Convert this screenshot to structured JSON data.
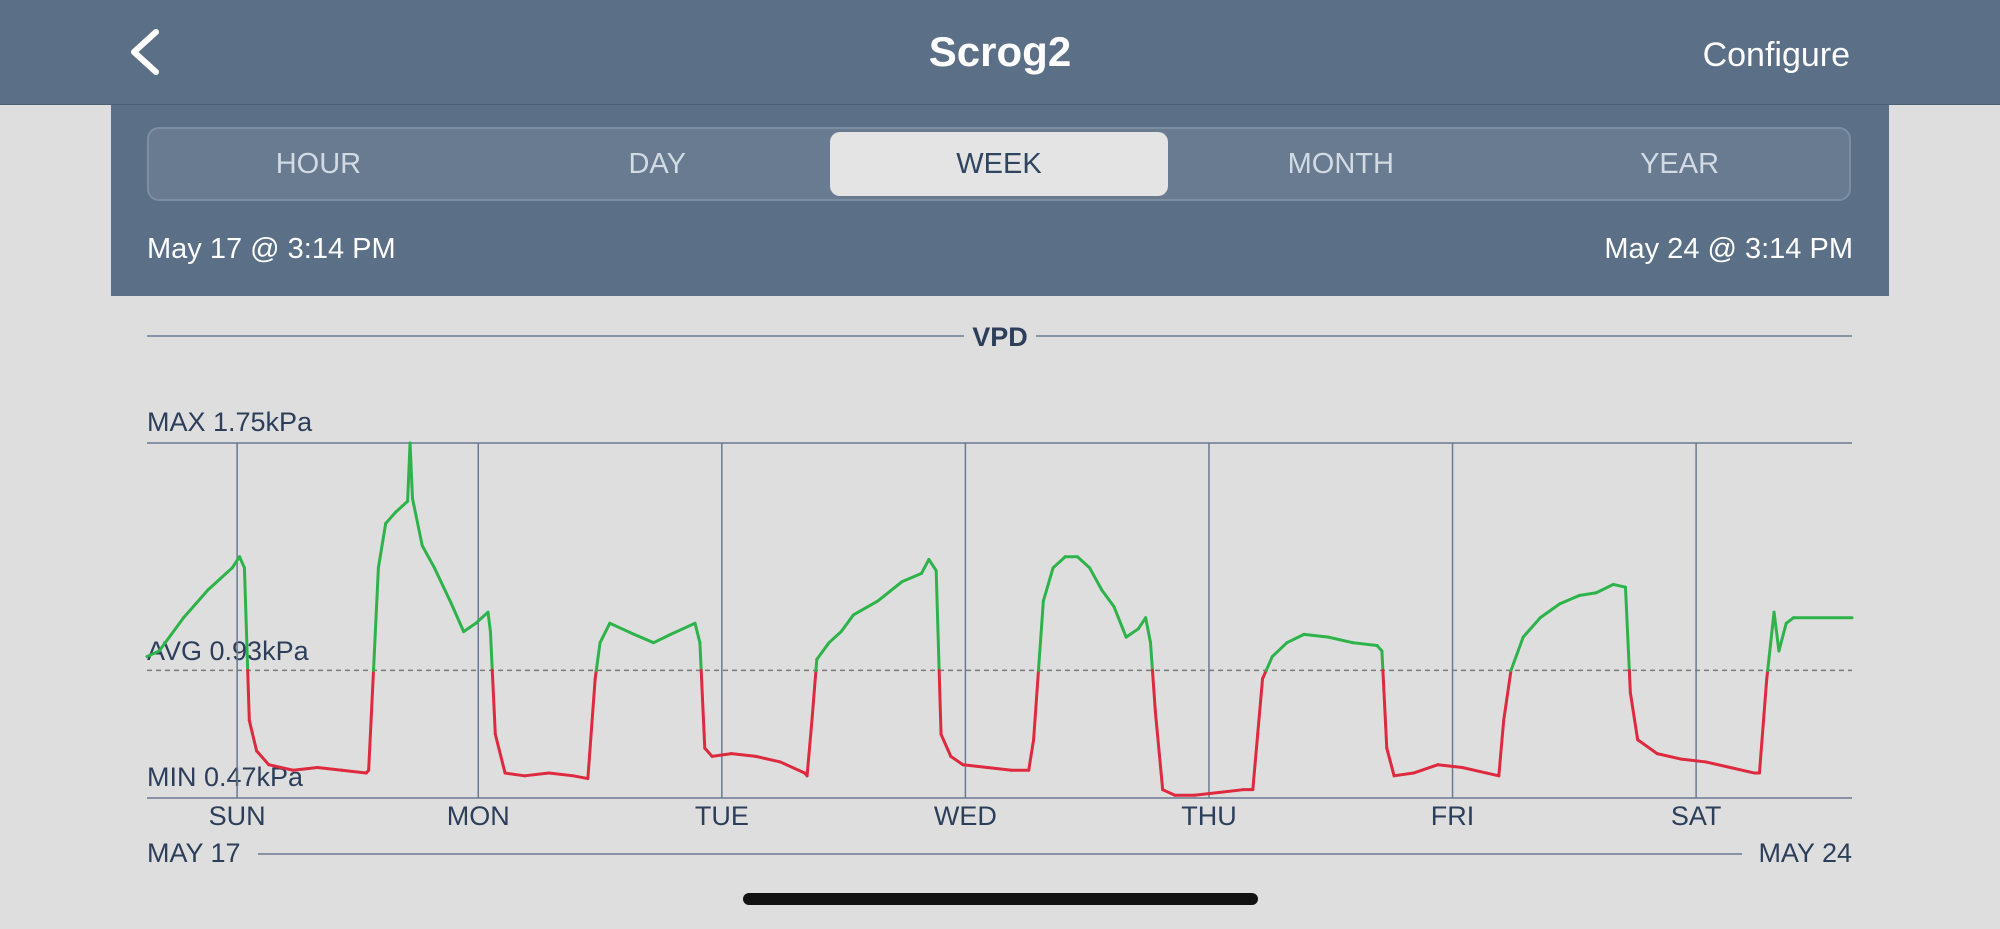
{
  "header": {
    "title": "Scrog2",
    "configure_label": "Configure",
    "back_icon": "chevron-left-icon"
  },
  "tabs": [
    {
      "label": "HOUR",
      "active": false
    },
    {
      "label": "DAY",
      "active": false
    },
    {
      "label": "WEEK",
      "active": true
    },
    {
      "label": "MONTH",
      "active": false
    },
    {
      "label": "YEAR",
      "active": false
    }
  ],
  "range": {
    "start": "May 17 @ 3:14 PM",
    "end": "May 24 @ 3:14 PM"
  },
  "colors": {
    "header_bg": "#5b6f86",
    "above_avg": "#2db34a",
    "below_avg": "#dd2a3f",
    "axis_text": "#2c3e5a"
  },
  "chart_data": {
    "type": "line",
    "title": "VPD",
    "unit": "kPa",
    "max_label": "MAX 1.75kPa",
    "avg_label": "AVG 0.93kPa",
    "min_label": "MIN 0.47kPa",
    "max": 1.75,
    "avg": 0.93,
    "min": 0.47,
    "ylim": [
      0.47,
      1.75
    ],
    "x_unit": "days",
    "xlim": [
      0,
      7
    ],
    "day_labels": [
      "SUN",
      "MON",
      "TUE",
      "WED",
      "THU",
      "FRI",
      "SAT"
    ],
    "day_positions": [
      0.37,
      1.36,
      2.36,
      3.36,
      4.36,
      5.36,
      6.36
    ],
    "start_date_label": "MAY 17",
    "end_date_label": "MAY 24",
    "grid": true,
    "series": [
      {
        "points": [
          [
            0.0,
            0.98
          ],
          [
            0.05,
            1.0
          ],
          [
            0.1,
            1.06
          ],
          [
            0.15,
            1.12
          ],
          [
            0.2,
            1.17
          ],
          [
            0.25,
            1.22
          ],
          [
            0.3,
            1.26
          ],
          [
            0.35,
            1.3
          ],
          [
            0.38,
            1.34
          ],
          [
            0.4,
            1.3
          ],
          [
            0.42,
            0.75
          ],
          [
            0.45,
            0.64
          ],
          [
            0.5,
            0.59
          ],
          [
            0.6,
            0.57
          ],
          [
            0.7,
            0.58
          ],
          [
            0.8,
            0.57
          ],
          [
            0.9,
            0.56
          ],
          [
            0.91,
            0.57
          ],
          [
            0.93,
            0.93
          ],
          [
            0.95,
            1.3
          ],
          [
            0.98,
            1.46
          ],
          [
            1.02,
            1.5
          ],
          [
            1.07,
            1.54
          ],
          [
            1.08,
            1.75
          ],
          [
            1.09,
            1.55
          ],
          [
            1.13,
            1.38
          ],
          [
            1.18,
            1.3
          ],
          [
            1.25,
            1.17
          ],
          [
            1.3,
            1.07
          ],
          [
            1.35,
            1.1
          ],
          [
            1.4,
            1.14
          ],
          [
            1.41,
            1.07
          ],
          [
            1.43,
            0.7
          ],
          [
            1.47,
            0.56
          ],
          [
            1.55,
            0.55
          ],
          [
            1.65,
            0.56
          ],
          [
            1.75,
            0.55
          ],
          [
            1.81,
            0.54
          ],
          [
            1.84,
            0.9
          ],
          [
            1.86,
            1.03
          ],
          [
            1.9,
            1.1
          ],
          [
            1.95,
            1.08
          ],
          [
            2.0,
            1.06
          ],
          [
            2.08,
            1.03
          ],
          [
            2.15,
            1.06
          ],
          [
            2.2,
            1.08
          ],
          [
            2.25,
            1.1
          ],
          [
            2.27,
            1.03
          ],
          [
            2.29,
            0.65
          ],
          [
            2.32,
            0.62
          ],
          [
            2.4,
            0.63
          ],
          [
            2.5,
            0.62
          ],
          [
            2.6,
            0.6
          ],
          [
            2.7,
            0.56
          ],
          [
            2.71,
            0.55
          ],
          [
            2.73,
            0.75
          ],
          [
            2.75,
            0.97
          ],
          [
            2.8,
            1.03
          ],
          [
            2.85,
            1.07
          ],
          [
            2.9,
            1.13
          ],
          [
            3.0,
            1.18
          ],
          [
            3.1,
            1.25
          ],
          [
            3.18,
            1.28
          ],
          [
            3.21,
            1.33
          ],
          [
            3.24,
            1.29
          ],
          [
            3.26,
            0.7
          ],
          [
            3.3,
            0.62
          ],
          [
            3.35,
            0.59
          ],
          [
            3.45,
            0.58
          ],
          [
            3.55,
            0.57
          ],
          [
            3.62,
            0.57
          ],
          [
            3.64,
            0.68
          ],
          [
            3.66,
            0.93
          ],
          [
            3.68,
            1.18
          ],
          [
            3.72,
            1.3
          ],
          [
            3.77,
            1.34
          ],
          [
            3.82,
            1.34
          ],
          [
            3.87,
            1.3
          ],
          [
            3.92,
            1.22
          ],
          [
            3.97,
            1.16
          ],
          [
            4.02,
            1.05
          ],
          [
            4.07,
            1.08
          ],
          [
            4.1,
            1.12
          ],
          [
            4.12,
            1.03
          ],
          [
            4.14,
            0.78
          ],
          [
            4.17,
            0.5
          ],
          [
            4.22,
            0.48
          ],
          [
            4.3,
            0.48
          ],
          [
            4.4,
            0.49
          ],
          [
            4.5,
            0.5
          ],
          [
            4.54,
            0.5
          ],
          [
            4.56,
            0.7
          ],
          [
            4.58,
            0.9
          ],
          [
            4.62,
            0.98
          ],
          [
            4.68,
            1.03
          ],
          [
            4.75,
            1.06
          ],
          [
            4.85,
            1.05
          ],
          [
            4.95,
            1.03
          ],
          [
            5.05,
            1.02
          ],
          [
            5.07,
            1.0
          ],
          [
            5.09,
            0.65
          ],
          [
            5.12,
            0.55
          ],
          [
            5.2,
            0.56
          ],
          [
            5.3,
            0.59
          ],
          [
            5.4,
            0.58
          ],
          [
            5.5,
            0.56
          ],
          [
            5.55,
            0.55
          ],
          [
            5.57,
            0.75
          ],
          [
            5.6,
            0.93
          ],
          [
            5.65,
            1.05
          ],
          [
            5.72,
            1.12
          ],
          [
            5.8,
            1.17
          ],
          [
            5.88,
            1.2
          ],
          [
            5.95,
            1.21
          ],
          [
            6.02,
            1.24
          ],
          [
            6.07,
            1.23
          ],
          [
            6.09,
            0.85
          ],
          [
            6.12,
            0.68
          ],
          [
            6.2,
            0.63
          ],
          [
            6.3,
            0.61
          ],
          [
            6.4,
            0.6
          ],
          [
            6.5,
            0.58
          ],
          [
            6.6,
            0.56
          ],
          [
            6.62,
            0.56
          ],
          [
            6.65,
            0.9
          ],
          [
            6.68,
            1.14
          ],
          [
            6.7,
            1.0
          ],
          [
            6.73,
            1.1
          ],
          [
            6.76,
            1.12
          ],
          [
            7.0,
            1.12
          ]
        ]
      }
    ]
  }
}
